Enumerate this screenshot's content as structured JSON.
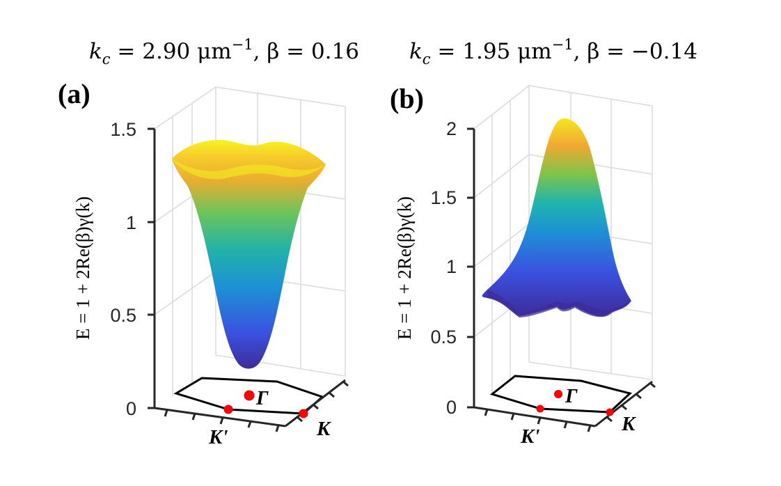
{
  "chart_data": [
    {
      "type": "surface3d",
      "panel_label": "(a)",
      "title": "k_c = 2.90 μm^-1, β = 0.16",
      "title_parts": {
        "k": "k",
        "sub": "c",
        "eq1": " = 2.90 μm",
        "sup": "−1",
        "rest": ", β = 0.16"
      },
      "zlabel": "E = 1 + 2Re(β)γ(k)",
      "zticks": [
        "0",
        "0.5",
        "1",
        "1.5"
      ],
      "zlim": [
        0,
        1.5
      ],
      "surface": {
        "shape": "bowl",
        "min": 0.2,
        "max": 1.48
      },
      "points": [
        "Γ",
        "K'",
        "K"
      ],
      "colormap": "parula"
    },
    {
      "type": "surface3d",
      "panel_label": "(b)",
      "title": "k_c = 1.95 μm^-1, β = -0.14",
      "title_parts": {
        "k": "k",
        "sub": "c",
        "eq1": " = 1.95 μm",
        "sup": "−1",
        "rest": ", β = −0.14"
      },
      "zlabel": "E = 1 + 2Re(β)γ(k)",
      "zticks": [
        "0",
        "0.5",
        "1",
        "1.5",
        "2"
      ],
      "zlim": [
        0,
        2
      ],
      "surface": {
        "shape": "dome",
        "min": 0.65,
        "max": 2.05
      },
      "points": [
        "Γ",
        "K'",
        "K"
      ],
      "colormap": "parula"
    }
  ]
}
